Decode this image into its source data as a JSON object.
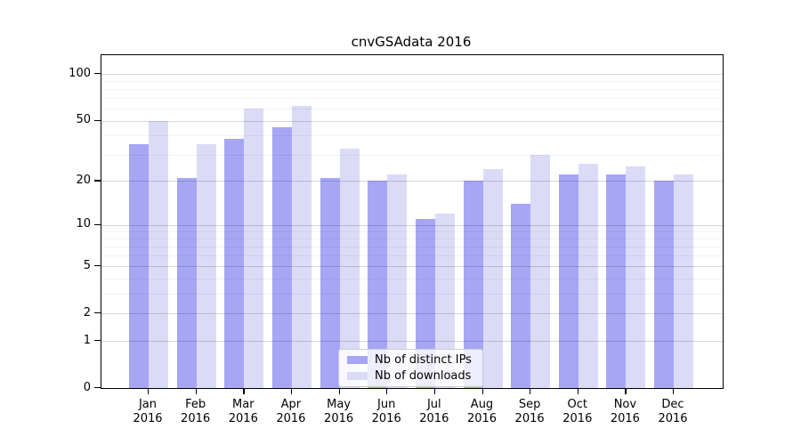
{
  "chart_data": {
    "type": "bar",
    "title": "cnvGSAdata 2016",
    "categories": [
      "Jan",
      "Feb",
      "Mar",
      "Apr",
      "May",
      "Jun",
      "Jul",
      "Aug",
      "Sep",
      "Oct",
      "Nov",
      "Dec"
    ],
    "category_year": "2016",
    "series": [
      {
        "name": "Nb of distinct IPs",
        "color": "#a6a6f5",
        "values": [
          35,
          21,
          38,
          45,
          21,
          20,
          11,
          20,
          14,
          22,
          22,
          20
        ]
      },
      {
        "name": "Nb of downloads",
        "color": "#dbdbf8",
        "values": [
          50,
          35,
          60,
          62,
          33,
          22,
          12,
          24,
          30,
          26,
          25,
          22
        ]
      }
    ],
    "xlabel": "",
    "ylabel": "",
    "y_scale": "log1p",
    "y_ticks": [
      100,
      50,
      20,
      10,
      5,
      2,
      1,
      0
    ],
    "y_minor_gridlines": [
      3,
      4,
      6,
      7,
      8,
      9,
      30,
      40,
      60,
      70,
      80,
      90
    ],
    "ylim": [
      0,
      133
    ],
    "grid": true,
    "legend_position": "bottom-center"
  }
}
